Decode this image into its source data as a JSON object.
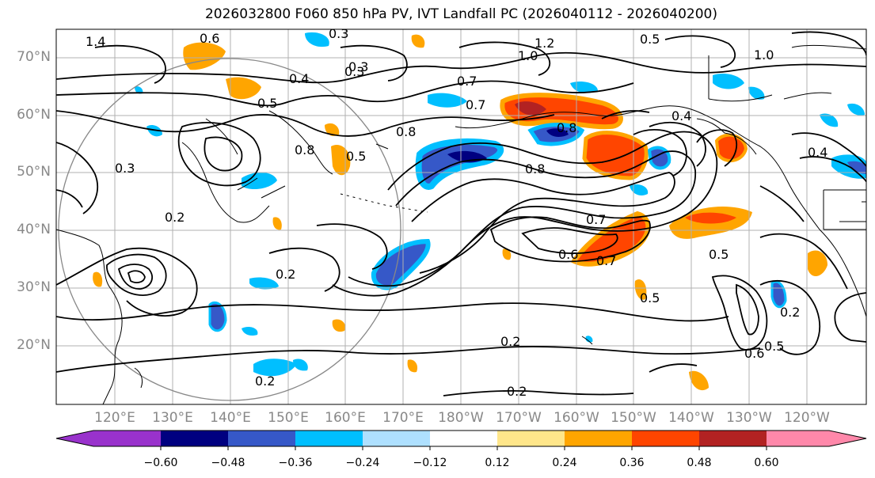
{
  "title": "2026032800 F060 850 hPa PV, IVT Landfall PC (2026040112 - 2026040200)",
  "lat_labels": [
    "70°N",
    "60°N",
    "50°N",
    "40°N",
    "30°N",
    "20°N"
  ],
  "lon_labels": [
    "120°E",
    "130°E",
    "140°E",
    "150°E",
    "160°E",
    "170°E",
    "180°W",
    "170°W",
    "160°W",
    "150°W",
    "140°W",
    "130°W",
    "120°W"
  ],
  "colorbar": {
    "ticks": [
      "−0.60",
      "−0.48",
      "−0.36",
      "−0.24",
      "−0.12",
      "0.12",
      "0.24",
      "0.36",
      "0.48",
      "0.60"
    ],
    "colors": [
      "#9932cc",
      "#000080",
      "#3658c8",
      "#00bfff",
      "#aee0ff",
      "#ffffff",
      "#ffe68a",
      "#ffa500",
      "#ff4500",
      "#b22222",
      "#ff88aa"
    ]
  },
  "contour_labels": [
    {
      "text": "1.4"
    },
    {
      "text": "0.6"
    },
    {
      "text": "0.3"
    },
    {
      "text": "0.5"
    },
    {
      "text": "1.2"
    },
    {
      "text": "1.0"
    },
    {
      "text": "0.4"
    },
    {
      "text": "0.5"
    },
    {
      "text": "0.7"
    },
    {
      "text": "0.8"
    },
    {
      "text": "0.3"
    },
    {
      "text": "0.8"
    },
    {
      "text": "0.5"
    },
    {
      "text": "0.8"
    },
    {
      "text": "0.7"
    },
    {
      "text": "0.8"
    },
    {
      "text": "0.4"
    },
    {
      "text": "0.7"
    },
    {
      "text": "0.6"
    },
    {
      "text": "0.7"
    },
    {
      "text": "0.2"
    },
    {
      "text": "0.2"
    },
    {
      "text": "0.2"
    },
    {
      "text": "0.2"
    },
    {
      "text": "0.2"
    },
    {
      "text": "0.5"
    },
    {
      "text": "0.5"
    },
    {
      "text": "0.2"
    },
    {
      "text": "0.5"
    },
    {
      "text": "0.6"
    },
    {
      "text": "0.4"
    },
    {
      "text": "0.3"
    },
    {
      "text": "0.3"
    },
    {
      "text": "1.0"
    }
  ]
}
